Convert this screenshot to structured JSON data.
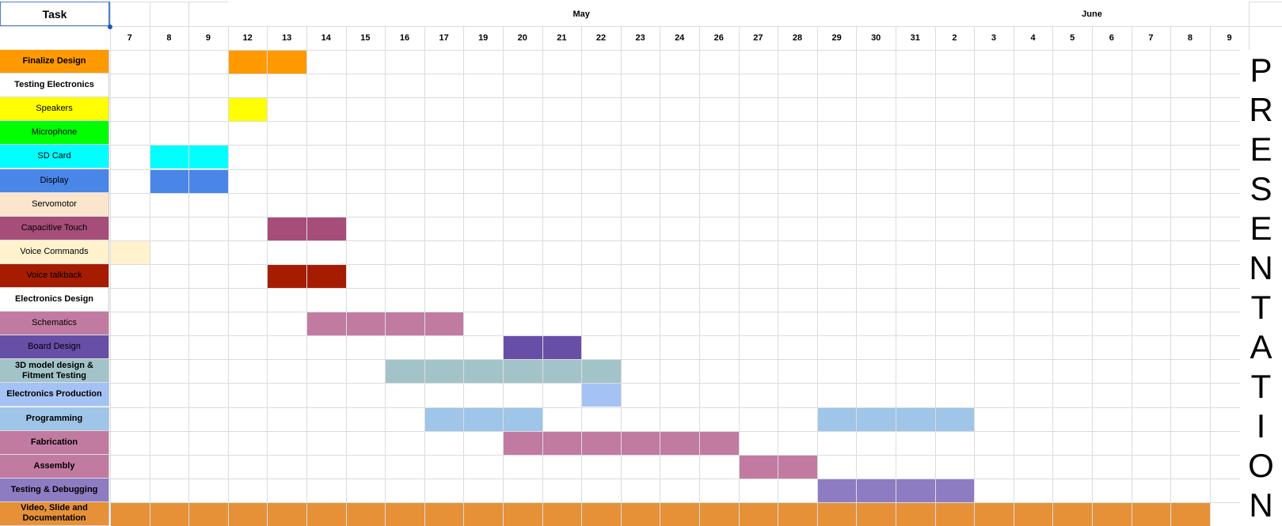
{
  "header": {
    "task_label": "Task",
    "months": [
      {
        "label": "May",
        "startCol": 3,
        "span": 18
      },
      {
        "label": "June",
        "startCol": 21,
        "span": 8
      }
    ],
    "days": [
      "7",
      "8",
      "9",
      "12",
      "13",
      "14",
      "15",
      "16",
      "17",
      "19",
      "20",
      "21",
      "22",
      "23",
      "24",
      "26",
      "27",
      "28",
      "29",
      "30",
      "31",
      "2",
      "3",
      "4",
      "5",
      "6",
      "7",
      "8",
      "9"
    ]
  },
  "tasks": [
    {
      "label": "Finalize Design",
      "color": "#ff9900",
      "bold": true,
      "bars": [
        {
          "start": 3,
          "end": 4
        }
      ]
    },
    {
      "label": "Testing Electronics",
      "color": "#ffffff",
      "bold": true,
      "bars": []
    },
    {
      "label": "Speakers",
      "color": "#ffff00",
      "bold": false,
      "bars": [
        {
          "start": 3,
          "end": 3
        }
      ]
    },
    {
      "label": "Microphone",
      "color": "#00ff00",
      "bold": false,
      "bars": []
    },
    {
      "label": "SD Card",
      "color": "#00ffff",
      "bold": false,
      "bars": [
        {
          "start": 1,
          "end": 2
        }
      ]
    },
    {
      "label": "Display",
      "color": "#4a86e8",
      "bold": false,
      "bars": [
        {
          "start": 1,
          "end": 2
        }
      ]
    },
    {
      "label": "Servomotor",
      "color": "#fce5cd",
      "bold": false,
      "bars": []
    },
    {
      "label": "Capacitive Touch",
      "color": "#a64d79",
      "bold": false,
      "bars": [
        {
          "start": 4,
          "end": 5
        }
      ]
    },
    {
      "label": "Voice Commands",
      "color": "#fff2cc",
      "bold": false,
      "bars": [
        {
          "start": 0,
          "end": 0
        }
      ]
    },
    {
      "label": "Voice talkback",
      "color": "#a61c00",
      "bold": false,
      "bars": [
        {
          "start": 4,
          "end": 5
        }
      ]
    },
    {
      "label": "Electronics Design",
      "color": "#ffffff",
      "bold": true,
      "bars": []
    },
    {
      "label": "Schematics",
      "color": "#c27ba0",
      "bold": false,
      "bars": [
        {
          "start": 5,
          "end": 8
        }
      ]
    },
    {
      "label": "Board Design",
      "color": "#674ea7",
      "bold": false,
      "bars": [
        {
          "start": 10,
          "end": 11
        }
      ]
    },
    {
      "label": "3D model design & Fitment Testing",
      "color": "#a2c4c9",
      "bold": true,
      "bars": [
        {
          "start": 7,
          "end": 12
        }
      ]
    },
    {
      "label": "Electronics Production",
      "color": "#a4c2f4",
      "bold": true,
      "bars": [
        {
          "start": 12,
          "end": 12
        }
      ]
    },
    {
      "label": "Programming",
      "color": "#9fc5e8",
      "bold": true,
      "bars": [
        {
          "start": 8,
          "end": 10
        },
        {
          "start": 18,
          "end": 21
        }
      ]
    },
    {
      "label": "Fabrication",
      "color": "#c27ba0",
      "bold": true,
      "bars": [
        {
          "start": 10,
          "end": 15
        }
      ]
    },
    {
      "label": "Assembly",
      "color": "#c27ba0",
      "bold": true,
      "bars": [
        {
          "start": 16,
          "end": 17
        }
      ]
    },
    {
      "label": "Testing & Debugging",
      "color": "#8e7cc3",
      "bold": true,
      "bars": [
        {
          "start": 18,
          "end": 21
        }
      ]
    },
    {
      "label": "Video, Slide and Documentation",
      "color": "#e69138",
      "bold": true,
      "bars": [
        {
          "start": 0,
          "end": 27
        }
      ]
    }
  ],
  "presentation": {
    "letters": [
      "P",
      "R",
      "E",
      "S",
      "E",
      "N",
      "T",
      "A",
      "T",
      "I",
      "O",
      "N"
    ]
  }
}
